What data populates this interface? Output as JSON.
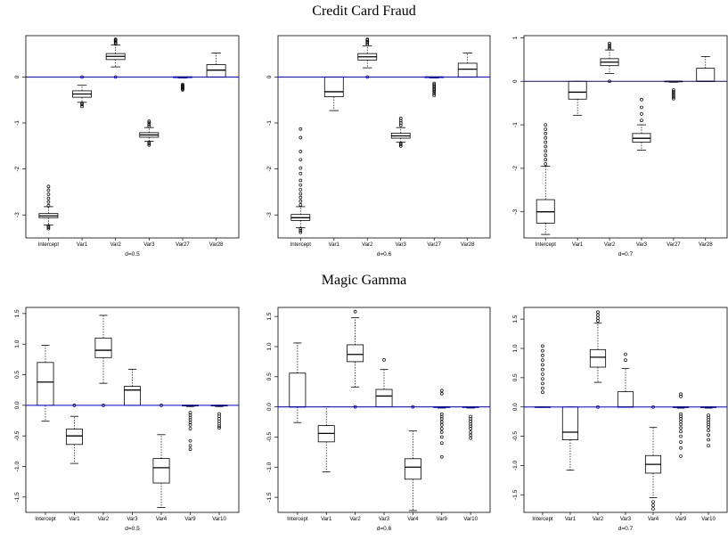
{
  "titles": {
    "top": "Credit Card Fraud",
    "bottom": "Magic Gamma"
  },
  "colors": {
    "zero_line": "#0000cc",
    "ink": "#000000",
    "box_fill": "#ffffff"
  },
  "chart_data": [
    {
      "type": "boxplot",
      "group": "Credit Card Fraud",
      "xlabel": "d=0.5",
      "ylim": [
        -3.5,
        0.9
      ],
      "yticks": [
        -3,
        -2,
        -1,
        0
      ],
      "ytick_labels": [
        "-3",
        "-2",
        "-1",
        "0"
      ],
      "hline": 0,
      "categories": [
        "Intercept",
        "Var1",
        "Var2",
        "Var3",
        "Var27",
        "Var28"
      ],
      "boxes": [
        {
          "q1": -3.06,
          "median": -3.02,
          "q3": -2.97,
          "lower_whisker": -3.22,
          "upper_whisker": -2.82,
          "outliers_low": [
            -3.24,
            -3.27,
            -3.3
          ],
          "outliers_high": [
            -2.8,
            -2.72,
            -2.64,
            -2.55,
            -2.46,
            -2.38
          ]
        },
        {
          "q1": -0.44,
          "median": -0.37,
          "q3": -0.3,
          "lower_whisker": -0.55,
          "upper_whisker": -0.18,
          "outliers_low": [
            -0.57,
            -0.6,
            -0.64
          ],
          "outliers_high": [
            0.0
          ]
        },
        {
          "q1": 0.38,
          "median": 0.45,
          "q3": 0.51,
          "lower_whisker": 0.22,
          "upper_whisker": 0.7,
          "outliers_low": [
            0.0
          ],
          "outliers_high": [
            0.72,
            0.75,
            0.78,
            0.8,
            0.82
          ]
        },
        {
          "q1": -1.31,
          "median": -1.26,
          "q3": -1.21,
          "lower_whisker": -1.4,
          "upper_whisker": -1.1,
          "outliers_low": [
            -1.42,
            -1.45,
            -1.48
          ],
          "outliers_high": [
            -1.07,
            -1.03,
            -0.99,
            -0.96
          ]
        },
        {
          "q1": -0.01,
          "median": 0.0,
          "q3": 0.0,
          "lower_whisker": -0.02,
          "upper_whisker": 0.0,
          "outliers_low": [
            -0.16,
            -0.18,
            -0.2,
            -0.22,
            -0.24,
            -0.26,
            -0.28
          ],
          "outliers_high": []
        },
        {
          "q1": 0.0,
          "median": 0.15,
          "q3": 0.27,
          "lower_whisker": 0.0,
          "upper_whisker": 0.52,
          "outliers_low": [],
          "outliers_high": []
        }
      ]
    },
    {
      "type": "boxplot",
      "group": "Credit Card Fraud",
      "xlabel": "d=0.6",
      "ylim": [
        -3.5,
        0.9
      ],
      "yticks": [
        -3,
        -2,
        -1,
        0
      ],
      "ytick_labels": [
        "-3",
        "-2",
        "-1",
        "0"
      ],
      "hline": 0,
      "categories": [
        "Intercept",
        "Var1",
        "Var2",
        "Var3",
        "Var27",
        "Var28"
      ],
      "boxes": [
        {
          "q1": -3.12,
          "median": -3.06,
          "q3": -2.99,
          "lower_whisker": -3.28,
          "upper_whisker": -2.82,
          "outliers_low": [
            -3.3,
            -3.34,
            -3.38
          ],
          "outliers_high": [
            -2.78,
            -2.7,
            -2.62,
            -2.54,
            -2.45,
            -2.35,
            -2.25,
            -2.1,
            -1.98,
            -1.8,
            -1.62,
            -1.32,
            -1.13
          ]
        },
        {
          "q1": -0.43,
          "median": -0.32,
          "q3": 0.0,
          "lower_whisker": -0.73,
          "upper_whisker": 0.0,
          "outliers_low": [],
          "outliers_high": []
        },
        {
          "q1": 0.37,
          "median": 0.44,
          "q3": 0.51,
          "lower_whisker": 0.2,
          "upper_whisker": 0.68,
          "outliers_low": [
            0.0
          ],
          "outliers_high": [
            0.71,
            0.74,
            0.77,
            0.8,
            0.82
          ]
        },
        {
          "q1": -1.33,
          "median": -1.28,
          "q3": -1.22,
          "lower_whisker": -1.42,
          "upper_whisker": -1.1,
          "outliers_low": [
            -1.44,
            -1.47,
            -1.5
          ],
          "outliers_high": [
            -1.05,
            -1.0,
            -0.95,
            -0.9
          ]
        },
        {
          "q1": -0.01,
          "median": 0.0,
          "q3": 0.0,
          "lower_whisker": -0.02,
          "upper_whisker": 0.0,
          "outliers_low": [
            -0.14,
            -0.17,
            -0.2,
            -0.23,
            -0.26,
            -0.29,
            -0.32,
            -0.36,
            -0.4
          ],
          "outliers_high": []
        },
        {
          "q1": 0.0,
          "median": 0.17,
          "q3": 0.3,
          "lower_whisker": 0.0,
          "upper_whisker": 0.52,
          "outliers_low": [],
          "outliers_high": []
        }
      ]
    },
    {
      "type": "boxplot",
      "group": "Credit Card Fraud",
      "xlabel": "d=0.7",
      "ylim": [
        -3.6,
        1.05
      ],
      "yticks": [
        -3,
        -2,
        -1,
        0,
        1
      ],
      "ytick_labels": [
        "-3",
        "-2",
        "-1",
        "0",
        "1"
      ],
      "hline": 0,
      "categories": [
        "Intercept",
        "Var1",
        "Var2",
        "Var3",
        "Var27",
        "Var28"
      ],
      "boxes": [
        {
          "q1": -3.26,
          "median": -3.0,
          "q3": -2.72,
          "lower_whisker": -3.52,
          "upper_whisker": -1.95,
          "outliers_low": [],
          "outliers_high": [
            -1.9,
            -1.8,
            -1.7,
            -1.6,
            -1.5,
            -1.4,
            -1.3,
            -1.2,
            -1.1,
            -1.0
          ]
        },
        {
          "q1": -0.41,
          "median": -0.25,
          "q3": 0.0,
          "lower_whisker": -0.78,
          "upper_whisker": 0.0,
          "outliers_low": [],
          "outliers_high": []
        },
        {
          "q1": 0.36,
          "median": 0.44,
          "q3": 0.52,
          "lower_whisker": 0.18,
          "upper_whisker": 0.72,
          "outliers_low": [
            0.0
          ],
          "outliers_high": [
            0.75,
            0.79,
            0.83,
            0.87
          ]
        },
        {
          "q1": -1.4,
          "median": -1.31,
          "q3": -1.2,
          "lower_whisker": -1.58,
          "upper_whisker": -1.0,
          "outliers_low": [],
          "outliers_high": [
            -0.9,
            -0.75,
            -0.6,
            -0.42
          ]
        },
        {
          "q1": -0.01,
          "median": 0.0,
          "q3": 0.0,
          "lower_whisker": -0.02,
          "upper_whisker": 0.0,
          "outliers_low": [
            -0.2,
            -0.24,
            -0.28,
            -0.32,
            -0.36,
            -0.4
          ],
          "outliers_high": []
        },
        {
          "q1": 0.0,
          "median": 0.0,
          "q3": 0.3,
          "lower_whisker": 0.0,
          "upper_whisker": 0.57,
          "outliers_low": [],
          "outliers_high": []
        }
      ]
    },
    {
      "type": "boxplot",
      "group": "Magic Gamma",
      "xlabel": "d=0.5",
      "ylim": [
        -1.75,
        1.6
      ],
      "yticks": [
        -1.5,
        -1.0,
        -0.5,
        0.0,
        0.5,
        1.0,
        1.5
      ],
      "ytick_labels": [
        "-1.5",
        "-1.0",
        "-0.5",
        "0.0",
        "0.5",
        "1.0",
        "1.5"
      ],
      "hline": 0,
      "categories": [
        "Intercept",
        "Var1",
        "Var2",
        "Var3",
        "Var4",
        "Var9",
        "Var10"
      ],
      "boxes": [
        {
          "q1": 0.0,
          "median": 0.38,
          "q3": 0.7,
          "lower_whisker": -0.26,
          "upper_whisker": 0.98,
          "outliers_low": [],
          "outliers_high": []
        },
        {
          "q1": -0.64,
          "median": -0.5,
          "q3": -0.39,
          "lower_whisker": -0.95,
          "upper_whisker": -0.18,
          "outliers_low": [],
          "outliers_high": [
            0.0
          ]
        },
        {
          "q1": 0.78,
          "median": 0.9,
          "q3": 1.1,
          "lower_whisker": 0.36,
          "upper_whisker": 1.47,
          "outliers_low": [
            0.0
          ],
          "outliers_high": []
        },
        {
          "q1": 0.0,
          "median": 0.25,
          "q3": 0.31,
          "lower_whisker": 0.0,
          "upper_whisker": 0.59,
          "outliers_low": [],
          "outliers_high": []
        },
        {
          "q1": -1.27,
          "median": -1.02,
          "q3": -0.87,
          "lower_whisker": -1.67,
          "upper_whisker": -0.48,
          "outliers_low": [],
          "outliers_high": [
            0.0
          ]
        },
        {
          "q1": -0.01,
          "median": 0.0,
          "q3": 0.0,
          "lower_whisker": -0.02,
          "upper_whisker": 0.0,
          "outliers_low": [
            -0.12,
            -0.16,
            -0.2,
            -0.24,
            -0.28,
            -0.32,
            -0.38,
            -0.58,
            -0.66,
            -0.72
          ],
          "outliers_high": []
        },
        {
          "q1": -0.01,
          "median": 0.0,
          "q3": 0.0,
          "lower_whisker": -0.02,
          "upper_whisker": 0.0,
          "outliers_low": [
            -0.14,
            -0.18,
            -0.22,
            -0.26,
            -0.3,
            -0.34,
            -0.37
          ],
          "outliers_high": []
        }
      ]
    },
    {
      "type": "boxplot",
      "group": "Magic Gamma",
      "xlabel": "d=0.6",
      "ylim": [
        -1.75,
        1.65
      ],
      "yticks": [
        -1.5,
        -1.0,
        -0.5,
        0.0,
        0.5,
        1.0,
        1.5
      ],
      "ytick_labels": [
        "-1.5",
        "-1.0",
        "-0.5",
        "0.0",
        "0.5",
        "1.0",
        "1.5"
      ],
      "hline": 0,
      "categories": [
        "Intercept",
        "Var1",
        "Var2",
        "Var3",
        "Var4",
        "Var9",
        "Var10"
      ],
      "boxes": [
        {
          "q1": 0.0,
          "median": 0.0,
          "q3": 0.56,
          "lower_whisker": -0.26,
          "upper_whisker": 1.06,
          "outliers_low": [],
          "outliers_high": []
        },
        {
          "q1": -0.58,
          "median": -0.44,
          "q3": -0.31,
          "lower_whisker": -1.08,
          "upper_whisker": 0.0,
          "outliers_low": [],
          "outliers_high": []
        },
        {
          "q1": 0.75,
          "median": 0.87,
          "q3": 1.03,
          "lower_whisker": 0.33,
          "upper_whisker": 1.48,
          "outliers_low": [
            0.0
          ],
          "outliers_high": [
            1.58
          ]
        },
        {
          "q1": 0.0,
          "median": 0.18,
          "q3": 0.29,
          "lower_whisker": 0.0,
          "upper_whisker": 0.62,
          "outliers_low": [],
          "outliers_high": [
            0.78
          ]
        },
        {
          "q1": -1.2,
          "median": -1.0,
          "q3": -0.86,
          "lower_whisker": -1.72,
          "upper_whisker": -0.4,
          "outliers_low": [],
          "outliers_high": [
            0.0
          ]
        },
        {
          "q1": -0.01,
          "median": 0.0,
          "q3": 0.0,
          "lower_whisker": -0.02,
          "upper_whisker": 0.0,
          "outliers_low": [
            -0.12,
            -0.16,
            -0.2,
            -0.25,
            -0.3,
            -0.36,
            -0.42,
            -0.5,
            -0.6,
            -0.83
          ],
          "outliers_high": [
            0.22,
            0.27
          ]
        },
        {
          "q1": -0.01,
          "median": 0.0,
          "q3": 0.0,
          "lower_whisker": -0.02,
          "upper_whisker": 0.0,
          "outliers_low": [
            -0.16,
            -0.2,
            -0.24,
            -0.28,
            -0.32,
            -0.36,
            -0.42,
            -0.47,
            -0.52
          ],
          "outliers_high": []
        }
      ]
    },
    {
      "type": "boxplot",
      "group": "Magic Gamma",
      "xlabel": "d=0.7",
      "ylim": [
        -1.8,
        1.7
      ],
      "yticks": [
        -1.5,
        -1.0,
        -0.5,
        0.0,
        0.5,
        1.0,
        1.5
      ],
      "ytick_labels": [
        "-1.5",
        "-1.0",
        "-0.5",
        "0.0",
        "0.5",
        "1.0",
        "1.5"
      ],
      "hline": 0,
      "categories": [
        "Intercept",
        "Var1",
        "Var2",
        "Var3",
        "Var4",
        "Var9",
        "Var10"
      ],
      "boxes": [
        {
          "q1": 0.0,
          "median": 0.0,
          "q3": 0.0,
          "lower_whisker": 0.0,
          "upper_whisker": 0.0,
          "outliers_low": [],
          "outliers_high": [
            0.25,
            0.32,
            0.4,
            0.48,
            0.56,
            0.64,
            0.72,
            0.8,
            0.88,
            0.96,
            1.04
          ]
        },
        {
          "q1": -0.56,
          "median": -0.43,
          "q3": 0.0,
          "lower_whisker": -1.08,
          "upper_whisker": 0.0,
          "outliers_low": [],
          "outliers_high": []
        },
        {
          "q1": 0.68,
          "median": 0.85,
          "q3": 0.98,
          "lower_whisker": 0.42,
          "upper_whisker": 1.43,
          "outliers_low": [
            0.0
          ],
          "outliers_high": [
            1.47,
            1.52,
            1.57,
            1.62
          ]
        },
        {
          "q1": 0.0,
          "median": 0.0,
          "q3": 0.26,
          "lower_whisker": 0.0,
          "upper_whisker": 0.66,
          "outliers_low": [],
          "outliers_high": [
            0.8,
            0.9
          ]
        },
        {
          "q1": -1.13,
          "median": -0.98,
          "q3": -0.83,
          "lower_whisker": -1.55,
          "upper_whisker": -0.35,
          "outliers_low": [
            -1.62,
            -1.68,
            -1.74
          ],
          "outliers_high": [
            0.0
          ]
        },
        {
          "q1": -0.01,
          "median": 0.0,
          "q3": 0.0,
          "lower_whisker": -0.02,
          "upper_whisker": 0.0,
          "outliers_low": [
            -0.12,
            -0.16,
            -0.2,
            -0.25,
            -0.3,
            -0.36,
            -0.42,
            -0.5,
            -0.6,
            -0.7,
            -0.84
          ],
          "outliers_high": [
            0.18,
            0.22
          ]
        },
        {
          "q1": -0.01,
          "median": 0.0,
          "q3": 0.0,
          "lower_whisker": -0.02,
          "upper_whisker": 0.0,
          "outliers_low": [
            -0.14,
            -0.18,
            -0.22,
            -0.26,
            -0.3,
            -0.34,
            -0.4,
            -0.48,
            -0.56,
            -0.66
          ],
          "outliers_high": []
        }
      ]
    }
  ]
}
